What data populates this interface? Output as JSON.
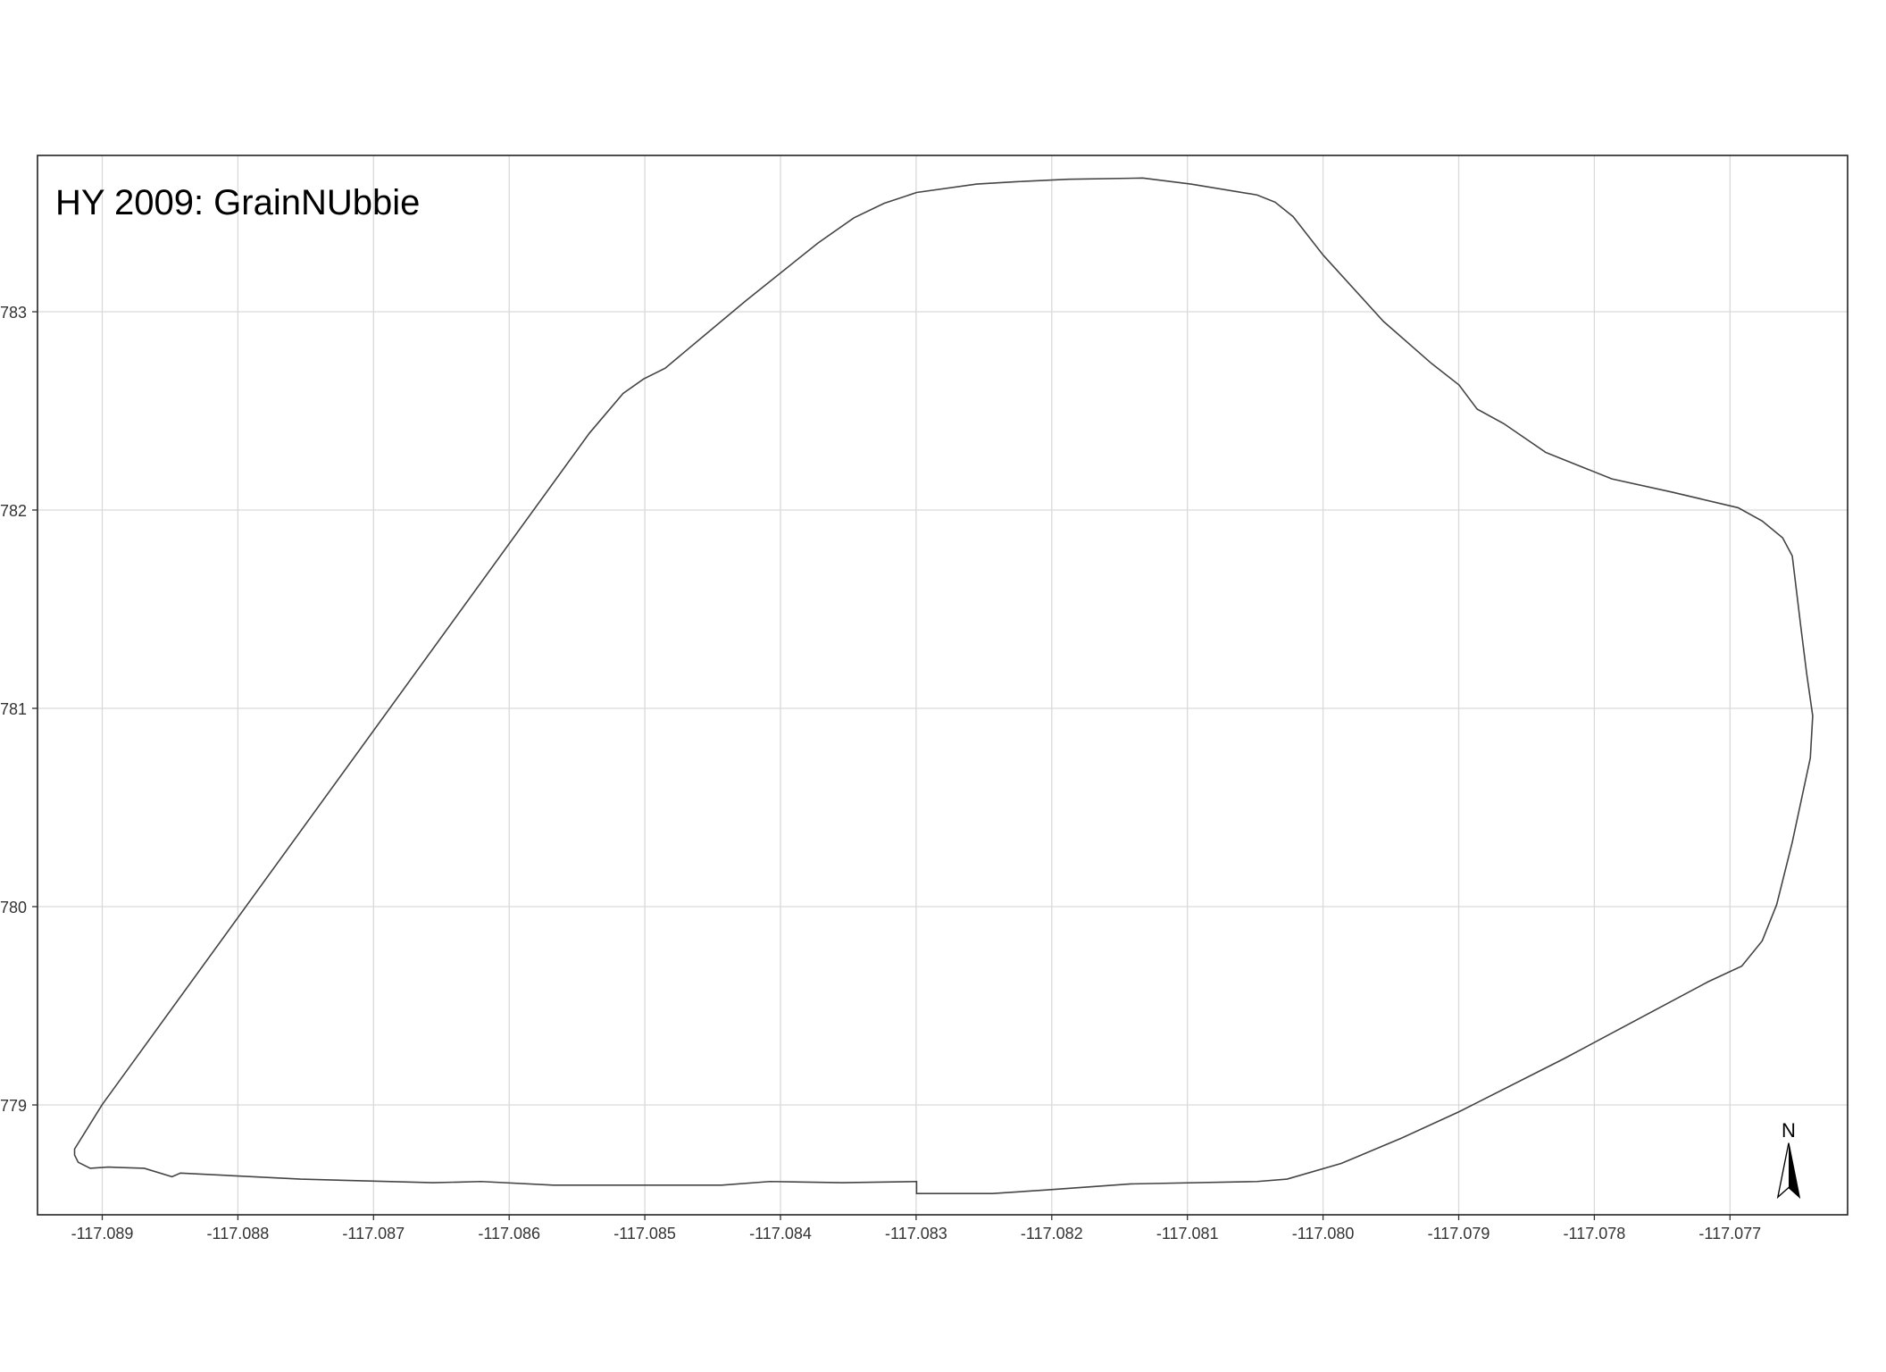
{
  "map": {
    "title": "HY 2009: GrainNUbbie",
    "x_labels": [
      "-117.089",
      "-117.088",
      "-117.087",
      "-117.086",
      "-117.085",
      "-117.084",
      "-117.083",
      "-117.082",
      "-117.081",
      "-117.080",
      "-117.079",
      "-117.078",
      "-117.077"
    ],
    "y_labels": [
      "783",
      "782",
      "781",
      "780",
      "779"
    ],
    "north": "N"
  }
}
